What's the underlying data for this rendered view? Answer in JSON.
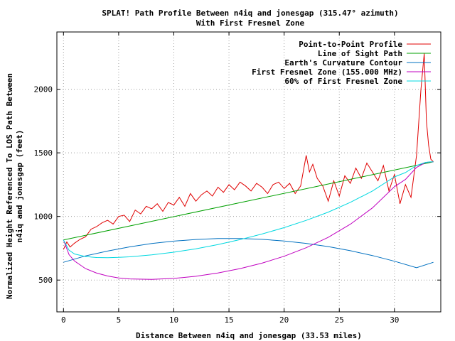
{
  "chart_data": {
    "type": "line",
    "title": "SPLAT! Path Profile Between n4iq and jonesgap (315.47° azimuth)",
    "subtitle": "With First Fresnel Zone",
    "xlabel": "Distance Between n4iq and jonesgap (33.53 miles)",
    "ylabel_line1": "Normalized Height Referenced To LOS Path Between",
    "ylabel_line2": "n4iq and jonesgap (feet)",
    "xlim": [
      -0.6,
      34.2
    ],
    "ylim": [
      250,
      2450
    ],
    "x_ticks": [
      0,
      5,
      10,
      15,
      20,
      25,
      30
    ],
    "y_ticks": [
      500,
      1000,
      1500,
      2000
    ],
    "grid": true,
    "legend_position": "top-right",
    "series": [
      {
        "name": "Point-to-Point Profile",
        "color": "#e00000",
        "x": [
          0,
          0.3,
          0.6,
          1.0,
          1.5,
          2.0,
          2.5,
          3.0,
          3.5,
          4.0,
          4.5,
          5.0,
          5.5,
          6.0,
          6.5,
          7.0,
          7.5,
          8.0,
          8.5,
          9.0,
          9.5,
          10.0,
          10.5,
          11.0,
          11.5,
          12.0,
          12.5,
          13.0,
          13.5,
          14.0,
          14.5,
          15.0,
          15.5,
          16.0,
          16.5,
          17.0,
          17.5,
          18.0,
          18.5,
          19.0,
          19.5,
          20.0,
          20.5,
          21.0,
          21.5,
          22.0,
          22.3,
          22.6,
          23.0,
          23.5,
          24.0,
          24.5,
          25.0,
          25.5,
          26.0,
          26.5,
          27.0,
          27.5,
          28.0,
          28.5,
          29.0,
          29.5,
          30.0,
          30.5,
          31.0,
          31.5,
          32.0,
          32.4,
          32.7,
          32.9,
          33.1,
          33.3,
          33.53
        ],
        "values": [
          740,
          800,
          760,
          790,
          820,
          840,
          900,
          920,
          950,
          970,
          940,
          1000,
          1010,
          960,
          1050,
          1020,
          1080,
          1060,
          1100,
          1040,
          1110,
          1090,
          1150,
          1080,
          1180,
          1120,
          1170,
          1200,
          1160,
          1230,
          1190,
          1250,
          1210,
          1270,
          1240,
          1200,
          1260,
          1230,
          1180,
          1250,
          1270,
          1220,
          1260,
          1180,
          1240,
          1480,
          1350,
          1410,
          1300,
          1240,
          1120,
          1280,
          1160,
          1320,
          1260,
          1380,
          1300,
          1420,
          1350,
          1280,
          1400,
          1200,
          1330,
          1100,
          1250,
          1150,
          1480,
          2000,
          2280,
          1750,
          1560,
          1450,
          1430
        ]
      },
      {
        "name": "Line of Sight Path",
        "color": "#00a000",
        "x": [
          0,
          33.53
        ],
        "values": [
          815,
          1430
        ]
      },
      {
        "name": "Earth's Curvature Contour",
        "color": "#0070c0",
        "x": [
          0,
          2,
          4,
          6,
          8,
          10,
          12,
          14,
          16,
          18,
          20,
          22,
          24,
          26,
          28,
          30,
          32,
          33.53
        ],
        "values": [
          640,
          690,
          728,
          761,
          787,
          806,
          819,
          826,
          826,
          820,
          807,
          788,
          763,
          731,
          693,
          648,
          597,
          640
        ]
      },
      {
        "name": "First Fresnel Zone (155.000 MHz)",
        "color": "#c000c0",
        "x": [
          0,
          0.5,
          1,
          2,
          3,
          4,
          5,
          6,
          8,
          10,
          12,
          14,
          16,
          18,
          20,
          22,
          24,
          26,
          28,
          30,
          31,
          32,
          32.8,
          33.2,
          33.53
        ],
        "values": [
          815,
          700,
          650,
          590,
          555,
          532,
          517,
          509,
          506,
          513,
          530,
          556,
          590,
          633,
          687,
          754,
          836,
          939,
          1067,
          1234,
          1291,
          1385,
          1423,
          1428,
          1430
        ]
      },
      {
        "name": "60% of First Fresnel Zone",
        "color": "#00d8e0",
        "x": [
          0,
          0.5,
          1,
          2,
          3,
          4,
          5,
          6,
          8,
          10,
          12,
          14,
          16,
          18,
          20,
          22,
          24,
          26,
          28,
          30,
          31,
          32,
          32.8,
          33.2,
          33.53
        ],
        "values": [
          815,
          735,
          705,
          685,
          677,
          676,
          678,
          683,
          698,
          719,
          746,
          779,
          818,
          862,
          912,
          969,
          1034,
          1111,
          1200,
          1311,
          1345,
          1400,
          1425,
          1429,
          1430
        ]
      }
    ]
  }
}
